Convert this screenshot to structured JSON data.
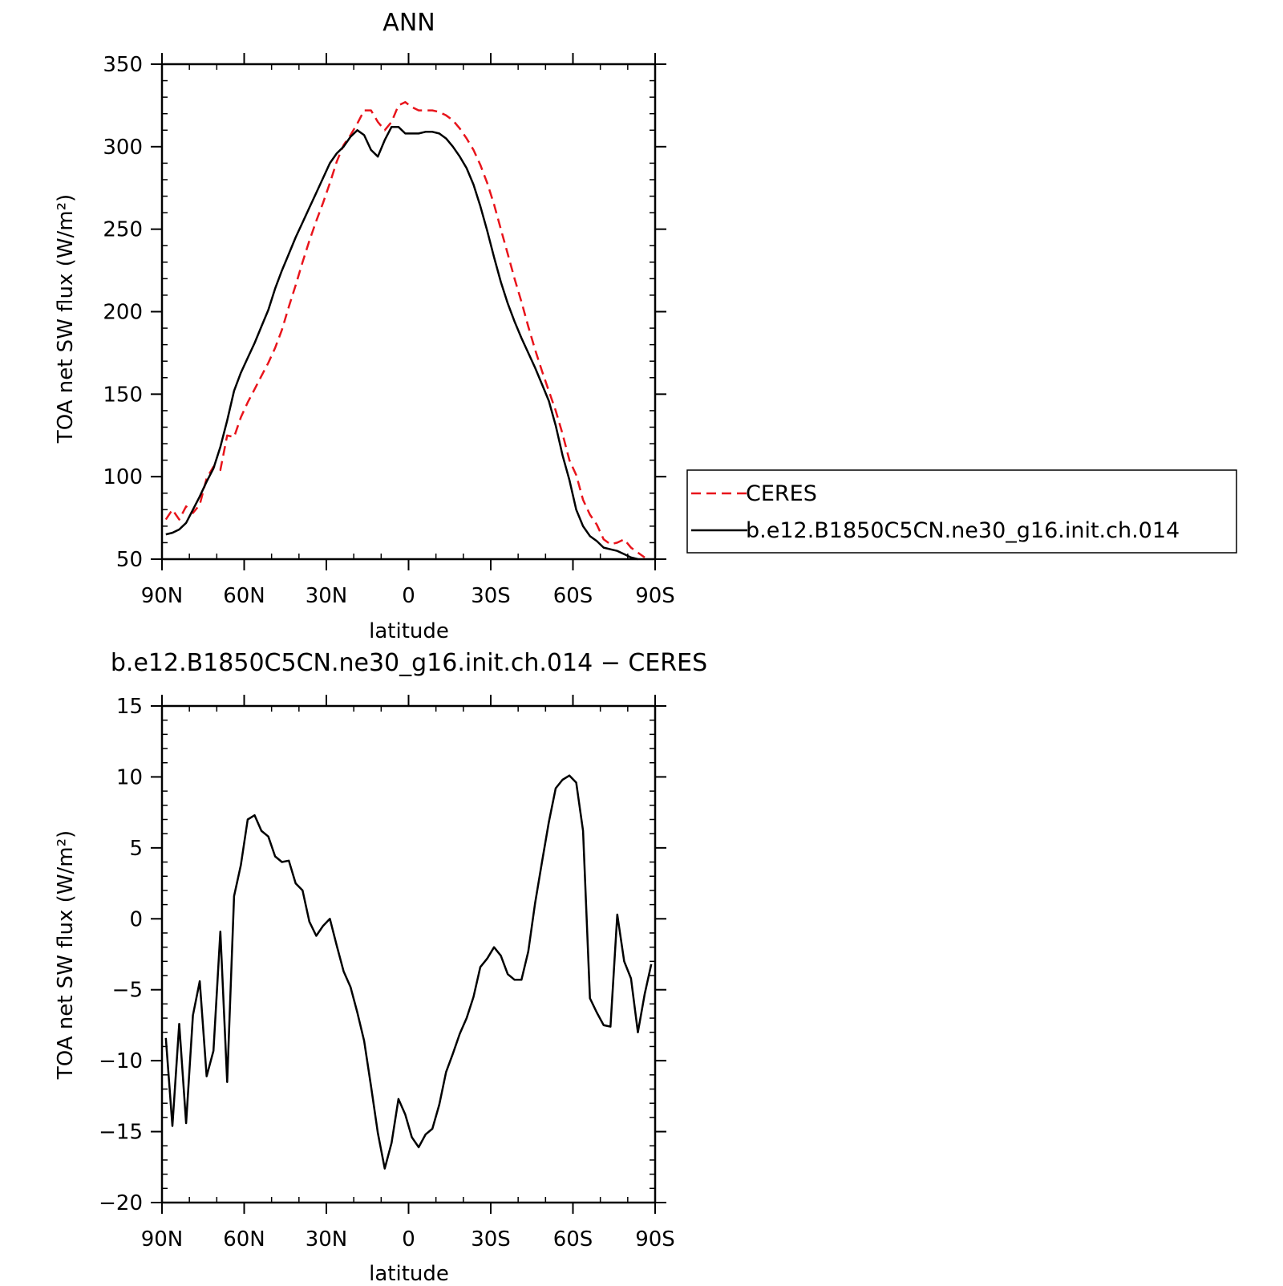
{
  "chart_data": [
    {
      "type": "line",
      "title": "ANN",
      "xlabel": "latitude",
      "ylabel": "TOA net SW flux (W/m²)",
      "xlim": [
        90,
        -90
      ],
      "ylim": [
        50,
        350
      ],
      "xticks": [
        90,
        60,
        30,
        0,
        -30,
        -60,
        -90
      ],
      "xtick_labels": [
        "90N",
        "60N",
        "30N",
        "0",
        "30S",
        "60S",
        "90S"
      ],
      "yticks": [
        50,
        100,
        150,
        200,
        250,
        300,
        350
      ],
      "ytick_labels": [
        "50",
        "100",
        "150",
        "200",
        "250",
        "300",
        "350"
      ],
      "grid": false,
      "legend": "right",
      "series": [
        {
          "name": "CERES",
          "color": "#e8141b",
          "style": "dashed",
          "points": [
            [
              88.6,
              74
            ],
            [
              86.2,
              80
            ],
            [
              83.7,
              74
            ],
            [
              81.2,
              82
            ],
            [
              78.7,
              78
            ],
            [
              76.2,
              83
            ],
            [
              73.7,
              99
            ],
            [
              71.2,
              106
            ],
            [
              68.7,
              104
            ],
            [
              66.2,
              125
            ],
            [
              63.7,
              124
            ],
            [
              61.2,
              136
            ],
            [
              58.7,
              145
            ],
            [
              56.2,
              153
            ],
            [
              53.7,
              161
            ],
            [
              51.2,
              169
            ],
            [
              48.7,
              178
            ],
            [
              46.2,
              189
            ],
            [
              43.7,
              203
            ],
            [
              41.2,
              216
            ],
            [
              38.7,
              230
            ],
            [
              36.2,
              243
            ],
            [
              33.7,
              255
            ],
            [
              31.2,
              266
            ],
            [
              28.7,
              278
            ],
            [
              26.2,
              291
            ],
            [
              23.7,
              301
            ],
            [
              21.2,
              307
            ],
            [
              18.7,
              314
            ],
            [
              16.2,
              322
            ],
            [
              13.7,
              322
            ],
            [
              11.2,
              315
            ],
            [
              8.7,
              310
            ],
            [
              6.2,
              315
            ],
            [
              3.7,
              325
            ],
            [
              1.2,
              327
            ],
            [
              -1.2,
              324
            ],
            [
              -3.7,
              322
            ],
            [
              -6.2,
              322
            ],
            [
              -8.7,
              322
            ],
            [
              -11.2,
              321
            ],
            [
              -13.7,
              319
            ],
            [
              -16.2,
              316
            ],
            [
              -18.7,
              311
            ],
            [
              -21.2,
              305
            ],
            [
              -23.7,
              298
            ],
            [
              -26.2,
              289
            ],
            [
              -28.7,
              278
            ],
            [
              -31.2,
              265
            ],
            [
              -33.7,
              250
            ],
            [
              -36.2,
              235
            ],
            [
              -38.7,
              220
            ],
            [
              -41.2,
              206
            ],
            [
              -43.7,
              191
            ],
            [
              -46.2,
              177
            ],
            [
              -48.7,
              164
            ],
            [
              -51.2,
              152
            ],
            [
              -53.7,
              140
            ],
            [
              -56.2,
              126
            ],
            [
              -58.7,
              110
            ],
            [
              -61.2,
              101
            ],
            [
              -63.7,
              86
            ],
            [
              -66.2,
              77
            ],
            [
              -68.7,
              71
            ],
            [
              -71.2,
              62
            ],
            [
              -73.7,
              59
            ],
            [
              -76.2,
              60
            ],
            [
              -78.7,
              62
            ],
            [
              -81.2,
              57
            ],
            [
              -83.7,
              54
            ],
            [
              -86.2,
              51
            ]
          ]
        },
        {
          "name": "b.e12.B1850C5CN.ne30_g16.init.ch.014",
          "color": "#000000",
          "style": "solid",
          "points": [
            [
              88.6,
              65
            ],
            [
              86.2,
              66
            ],
            [
              83.7,
              68
            ],
            [
              81.2,
              72
            ],
            [
              78.7,
              80
            ],
            [
              76.2,
              88
            ],
            [
              73.7,
              97
            ],
            [
              71.2,
              105
            ],
            [
              68.7,
              118
            ],
            [
              66.2,
              134
            ],
            [
              63.7,
              152
            ],
            [
              61.2,
              163
            ],
            [
              58.7,
              172
            ],
            [
              56.2,
              181
            ],
            [
              53.7,
              191
            ],
            [
              51.2,
              201
            ],
            [
              48.7,
              214
            ],
            [
              46.2,
              225
            ],
            [
              43.7,
              235
            ],
            [
              41.2,
              245
            ],
            [
              38.7,
              254
            ],
            [
              36.2,
              263
            ],
            [
              33.7,
              272
            ],
            [
              31.2,
              281
            ],
            [
              28.7,
              290
            ],
            [
              26.2,
              296
            ],
            [
              23.7,
              300
            ],
            [
              21.2,
              306
            ],
            [
              18.7,
              310
            ],
            [
              16.2,
              307
            ],
            [
              13.7,
              298
            ],
            [
              11.2,
              294
            ],
            [
              8.7,
              304
            ],
            [
              6.2,
              312
            ],
            [
              3.7,
              312
            ],
            [
              1.2,
              308
            ],
            [
              -1.2,
              308
            ],
            [
              -3.7,
              308
            ],
            [
              -6.2,
              309
            ],
            [
              -8.7,
              309
            ],
            [
              -11.2,
              308
            ],
            [
              -13.7,
              305
            ],
            [
              -16.2,
              300
            ],
            [
              -18.7,
              294
            ],
            [
              -21.2,
              287
            ],
            [
              -23.7,
              277
            ],
            [
              -26.2,
              264
            ],
            [
              -28.7,
              249
            ],
            [
              -31.2,
              233
            ],
            [
              -33.7,
              218
            ],
            [
              -36.2,
              205
            ],
            [
              -38.7,
              194
            ],
            [
              -41.2,
              184
            ],
            [
              -43.7,
              175
            ],
            [
              -46.2,
              166
            ],
            [
              -48.7,
              156
            ],
            [
              -51.2,
              146
            ],
            [
              -53.7,
              131
            ],
            [
              -56.2,
              113
            ],
            [
              -58.7,
              98
            ],
            [
              -61.2,
              80
            ],
            [
              -63.7,
              70
            ],
            [
              -66.2,
              64
            ],
            [
              -68.7,
              61
            ],
            [
              -71.2,
              57
            ],
            [
              -73.7,
              56
            ],
            [
              -76.2,
              55
            ],
            [
              -78.7,
              53
            ],
            [
              -81.2,
              51
            ],
            [
              -83.7,
              50
            ]
          ]
        }
      ]
    },
    {
      "type": "line",
      "title": "b.e12.B1850C5CN.ne30_g16.init.ch.014 − CERES",
      "xlabel": "latitude",
      "ylabel": "TOA net SW flux (W/m²)",
      "xlim": [
        90,
        -90
      ],
      "ylim": [
        -20,
        15
      ],
      "xticks": [
        90,
        60,
        30,
        0,
        -30,
        -60,
        -90
      ],
      "xtick_labels": [
        "90N",
        "60N",
        "30N",
        "0",
        "30S",
        "60S",
        "90S"
      ],
      "yticks": [
        -20,
        -15,
        -10,
        -5,
        0,
        5,
        10,
        15
      ],
      "ytick_labels": [
        "−20",
        "−15",
        "−10",
        "−5",
        "0",
        "5",
        "10",
        "15"
      ],
      "grid": false,
      "series": [
        {
          "color": "#000000",
          "style": "solid",
          "points": [
            [
              88.6,
              -8.4
            ],
            [
              86.2,
              -14.6
            ],
            [
              83.7,
              -7.4
            ],
            [
              81.2,
              -14.4
            ],
            [
              78.7,
              -6.8
            ],
            [
              76.2,
              -4.4
            ],
            [
              73.7,
              -11.1
            ],
            [
              71.2,
              -9.3
            ],
            [
              68.7,
              -0.9
            ],
            [
              66.2,
              -11.5
            ],
            [
              63.7,
              1.6
            ],
            [
              61.2,
              3.8
            ],
            [
              58.7,
              7
            ],
            [
              56.2,
              7.3
            ],
            [
              53.7,
              6.2
            ],
            [
              51.2,
              5.8
            ],
            [
              48.7,
              4.4
            ],
            [
              46.2,
              4
            ],
            [
              43.7,
              4.1
            ],
            [
              41.2,
              2.5
            ],
            [
              38.7,
              2
            ],
            [
              36.2,
              -0.2
            ],
            [
              33.7,
              -1.2
            ],
            [
              31.2,
              -0.5
            ],
            [
              28.7,
              0
            ],
            [
              26.2,
              -1.9
            ],
            [
              23.7,
              -3.7
            ],
            [
              21.2,
              -4.8
            ],
            [
              18.7,
              -6.6
            ],
            [
              16.2,
              -8.6
            ],
            [
              13.7,
              -11.8
            ],
            [
              11.2,
              -15.1
            ],
            [
              8.7,
              -17.6
            ],
            [
              6.2,
              -15.8
            ],
            [
              3.7,
              -12.7
            ],
            [
              1.2,
              -13.8
            ],
            [
              -1.2,
              -15.4
            ],
            [
              -3.7,
              -16.1
            ],
            [
              -6.2,
              -15.2
            ],
            [
              -8.7,
              -14.8
            ],
            [
              -11.2,
              -13.1
            ],
            [
              -13.7,
              -10.8
            ],
            [
              -16.2,
              -9.5
            ],
            [
              -18.7,
              -8.1
            ],
            [
              -21.2,
              -7
            ],
            [
              -23.7,
              -5.5
            ],
            [
              -26.2,
              -3.4
            ],
            [
              -28.7,
              -2.8
            ],
            [
              -31.2,
              -2
            ],
            [
              -33.7,
              -2.6
            ],
            [
              -36.2,
              -3.9
            ],
            [
              -38.7,
              -4.3
            ],
            [
              -41.2,
              -4.3
            ],
            [
              -43.7,
              -2.3
            ],
            [
              -46.2,
              1.1
            ],
            [
              -48.7,
              4
            ],
            [
              -51.2,
              6.8
            ],
            [
              -53.7,
              9.2
            ],
            [
              -56.2,
              9.8
            ],
            [
              -58.7,
              10.1
            ],
            [
              -61.2,
              9.6
            ],
            [
              -63.7,
              6.2
            ],
            [
              -66.2,
              -5.6
            ],
            [
              -68.7,
              -6.6
            ],
            [
              -71.2,
              -7.5
            ],
            [
              -73.7,
              -7.6
            ],
            [
              -76.2,
              0.3
            ],
            [
              -78.7,
              -3
            ],
            [
              -81.2,
              -4.2
            ],
            [
              -83.7,
              -8
            ],
            [
              -86.2,
              -5.3
            ],
            [
              -88.6,
              -3.2
            ]
          ]
        }
      ]
    }
  ]
}
